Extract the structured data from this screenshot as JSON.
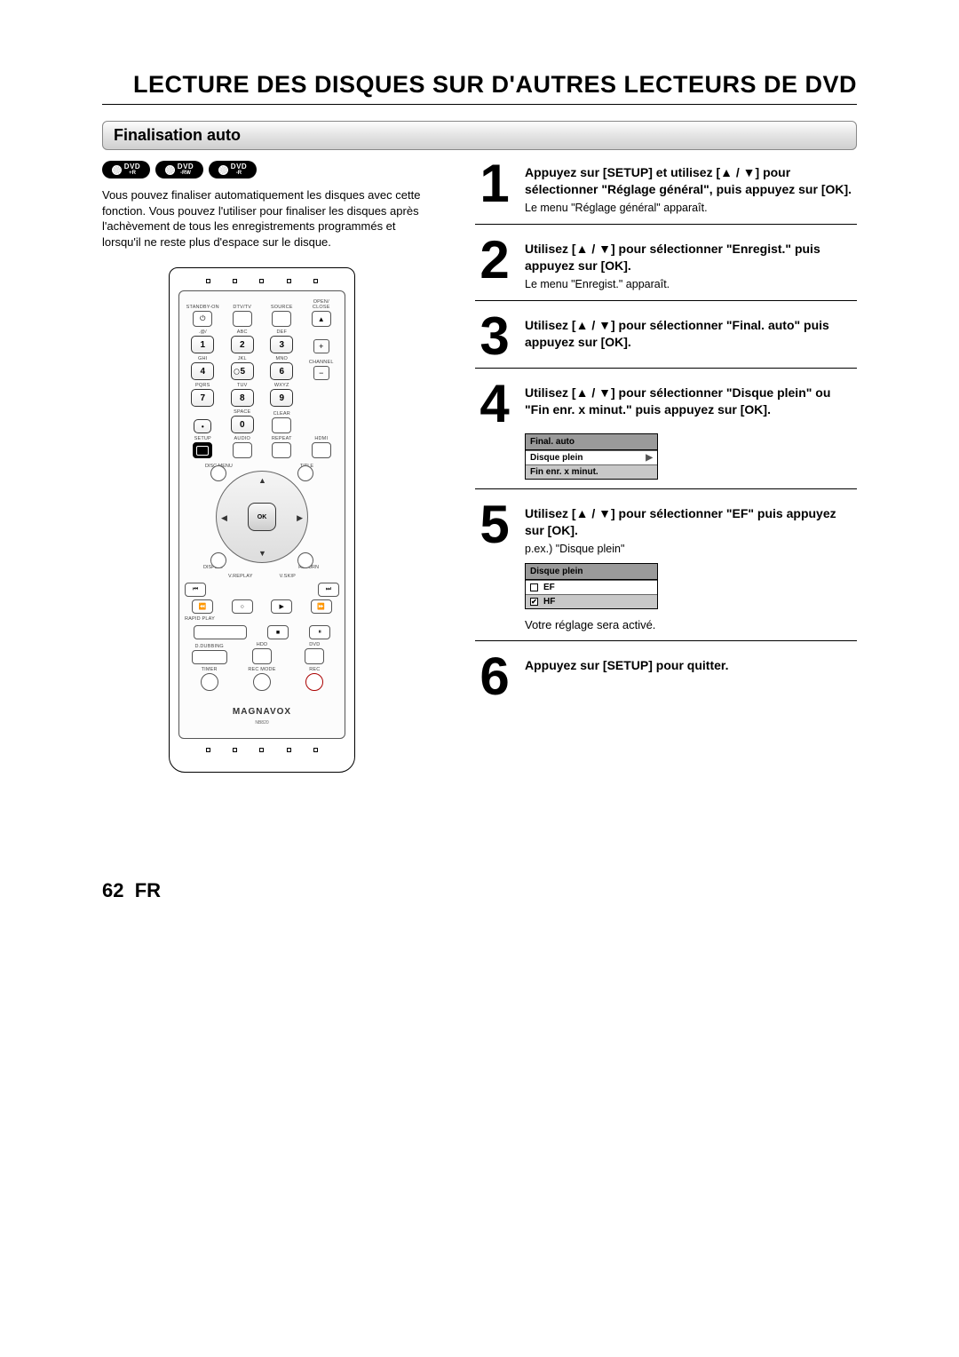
{
  "page": {
    "title": "LECTURE DES DISQUES SUR D'AUTRES LECTEURS DE DVD",
    "section": "Finalisation auto",
    "page_number": "62",
    "lang": "FR"
  },
  "badges": [
    {
      "top": "DVD",
      "sub": "+R"
    },
    {
      "top": "DVD",
      "sub": "-RW"
    },
    {
      "top": "DVD",
      "sub": "-R"
    }
  ],
  "intro": "Vous pouvez finaliser automatiquement les disques avec cette fonction. Vous pouvez l'utiliser pour finaliser les disques après l'achèvement de tous les enregistrements programmés et lorsqu'il ne reste plus d'espace sur le disque.",
  "remote": {
    "row1": [
      "STANDBY-ON",
      "DTV/TV",
      "SOURCE",
      "OPEN/\nCLOSE"
    ],
    "letters": [
      ".@/",
      "ABC",
      "DEF",
      "",
      "GHI",
      "JKL",
      "MNO",
      "CHANNEL",
      "PQRS",
      "TUV",
      "WXYZ",
      "",
      "",
      "SPACE",
      "CLEAR",
      ""
    ],
    "nums": [
      "1",
      "2",
      "3",
      "4",
      "5",
      "6",
      "7",
      "8",
      "9",
      "0"
    ],
    "mid_labels": [
      "SETUP",
      "AUDIO",
      "REPEAT",
      "HDMI"
    ],
    "nav": {
      "dm": "DISC MENU",
      "tt": "TITLE",
      "dp": "DISPLAY",
      "rt": "RETURN",
      "ok": "OK"
    },
    "under_nav": [
      "V.REPLAY",
      "V.SKIP"
    ],
    "transport": [
      "⏮",
      "⏭",
      "⏪",
      "○",
      "▶",
      "⏩"
    ],
    "rapid": "RAPID PLAY",
    "stop_pause": [
      "■",
      "⏸"
    ],
    "bottom_row1": [
      "D.DUBBING",
      "HDD",
      "DVD"
    ],
    "bottom_row2": [
      "TIMER",
      "REC MODE",
      "REC"
    ],
    "brand": "MAGNAVOX",
    "model": "NB820"
  },
  "steps": [
    {
      "n": "1",
      "bold_parts": [
        "Appuyez sur [SETUP] et utilisez [",
        "▲",
        " / ",
        "▼",
        "] pour sélectionner \"Réglage général\", puis appuyez sur [OK]."
      ],
      "note": "Le menu \"Réglage général\" apparaît.",
      "sep": true
    },
    {
      "n": "2",
      "bold_parts": [
        "Utilisez [",
        "▲",
        " / ",
        "▼",
        "] pour sélectionner \"Enregist.\" puis appuyez sur [OK]."
      ],
      "note": "Le menu \"Enregist.\" apparaît.",
      "sep": true
    },
    {
      "n": "3",
      "bold_parts": [
        "Utilisez [",
        "▲",
        " / ",
        "▼",
        "] pour sélectionner \"Final. auto\" puis appuyez sur [OK]."
      ],
      "sep": true
    },
    {
      "n": "4",
      "bold_parts": [
        "Utilisez [",
        "▲",
        " / ",
        "▼",
        "] pour sélectionner \"Disque plein\" ou \"Fin enr. x minut.\" puis appuyez sur [OK]."
      ],
      "menu": {
        "header": "Final. auto",
        "rows": [
          {
            "text": "Disque plein",
            "white": true,
            "arrow": true
          },
          {
            "text": "Fin enr. x minut."
          }
        ]
      },
      "sep": true
    },
    {
      "n": "5",
      "bold_parts": [
        "Utilisez [",
        "▲",
        " / ",
        "▼",
        "] pour sélectionner \"EF\" puis appuyez sur [OK]."
      ],
      "note": "p.ex.) \"Disque plein\"",
      "menu": {
        "header": "Disque plein",
        "rows": [
          {
            "check": "",
            "text": "EF",
            "white": true
          },
          {
            "check": "✔",
            "text": "HF"
          }
        ]
      },
      "after": "Votre réglage sera activé.",
      "sep": true
    },
    {
      "n": "6",
      "bold_parts": [
        "Appuyez sur [SETUP] pour quitter."
      ],
      "sep": false
    }
  ]
}
